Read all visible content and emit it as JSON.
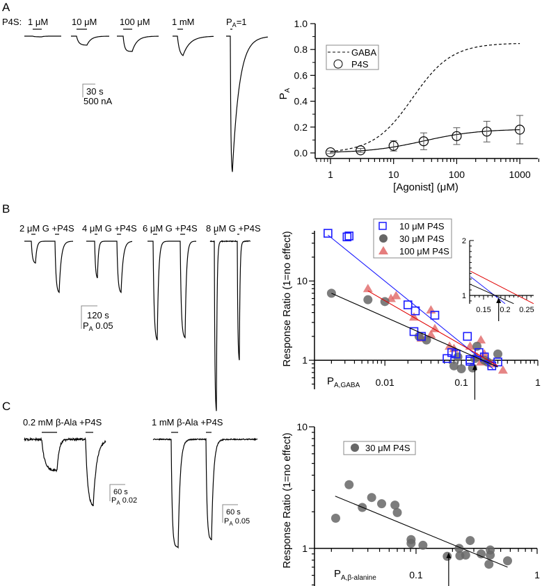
{
  "panels": {
    "a": "A",
    "b": "B",
    "c": "C"
  },
  "traces_a": {
    "prefix": "P4S:",
    "labels": [
      "1 μM",
      "10 μM",
      "100 μM",
      "1 mM"
    ],
    "pa_main": "P",
    "pa_sub": "A",
    "pa_rest": "=1",
    "scale_time": "30 s",
    "scale_amp": "500 nA"
  },
  "traces_b": {
    "labels": [
      "2 μM G +P4S",
      "4 μM G +P4S",
      "6 μM G +P4S",
      "8 μM G +P4S"
    ],
    "scale_time": "120 s",
    "scale_amp_main": "P",
    "scale_amp_sub": "A",
    "scale_amp_rest": " 0.05"
  },
  "traces_c": {
    "labels": [
      "0.2 mM β-Ala +P4S",
      "1 mM β-Ala +P4S"
    ],
    "scale1_time": "60 s",
    "scale1_amp_rest": " 0.02",
    "scale2_time": "60 s",
    "scale2_amp_rest": " 0.05",
    "amp_main": "P",
    "amp_sub": "A"
  },
  "chart_data": [
    {
      "type": "scatter",
      "panel": "A",
      "xlabel": "[Agonist] (μM)",
      "ylabel_main": "P",
      "ylabel_sub": "A",
      "xscale": "log",
      "xlim": [
        0.6,
        2000
      ],
      "ylim": [
        0,
        1.0
      ],
      "xticks": [
        "1",
        "10",
        "100",
        "1000"
      ],
      "yticks": [
        "0.0",
        "0.2",
        "0.4",
        "0.6",
        "0.8",
        "1.0"
      ],
      "legend_position": "top-left",
      "grid": false,
      "series": [
        {
          "name": "GABA",
          "style": "dashed-line",
          "fit": {
            "max": 0.85,
            "ec50": 20,
            "hill": 1.4
          }
        },
        {
          "name": "P4S",
          "style": "open-circle",
          "x": [
            1,
            3,
            10,
            30,
            100,
            300,
            1000
          ],
          "y": [
            0.005,
            0.02,
            0.055,
            0.09,
            0.13,
            0.165,
            0.18
          ],
          "err": [
            0.01,
            0.015,
            0.04,
            0.065,
            0.065,
            0.08,
            0.11
          ],
          "fit": {
            "max": 0.185,
            "ec50": 30,
            "hill": 1.0
          }
        }
      ]
    },
    {
      "type": "scatter",
      "panel": "B",
      "xlabel_main": "P",
      "xlabel_sub": "A,GABA",
      "ylabel": "Response Ratio (1=no effect)",
      "xscale": "log",
      "yscale": "log",
      "xlim": [
        0.0012,
        1
      ],
      "ylim": [
        0.43,
        43
      ],
      "xticks": [
        "0.01",
        "0.1",
        "1"
      ],
      "yticks": [
        "1",
        "10"
      ],
      "legend_position": "top-center",
      "grid": false,
      "arrow_x": 0.15,
      "series": [
        {
          "name": "10 μM P4S",
          "color": "#1a1aff",
          "marker": "open-square",
          "x": [
            0.0018,
            0.0032,
            0.0034,
            0.02,
            0.025,
            0.024,
            0.03,
            0.045,
            0.065,
            0.075,
            0.085,
            0.12,
            0.13,
            0.13,
            0.17,
            0.2,
            0.25,
            0.3
          ],
          "y": [
            40,
            36,
            37,
            5,
            4.2,
            2.3,
            2.0,
            3.7,
            1.05,
            1.25,
            1.2,
            2.0,
            0.97,
            1.02,
            1.25,
            1.1,
            0.85,
            0.95
          ],
          "fit": [
            [
              0.0018,
              38
            ],
            [
              0.26,
              0.78
            ]
          ]
        },
        {
          "name": "30 μM P4S",
          "color": "#666666",
          "marker": "filled-circle",
          "x": [
            0.002,
            0.006,
            0.01,
            0.028,
            0.035,
            0.08,
            0.09,
            0.1,
            0.14,
            0.15,
            0.16,
            0.2,
            0.3,
            0.22
          ],
          "y": [
            7,
            5.8,
            5.5,
            2,
            1.8,
            0.85,
            1.1,
            0.78,
            0.8,
            1.05,
            1.5,
            1.0,
            1.2,
            0.95
          ],
          "fit": [
            [
              0.002,
              7
            ],
            [
              0.3,
              0.82
            ]
          ]
        },
        {
          "name": "100 μM P4S",
          "color": "#e06666",
          "marker": "filled-triangle",
          "x": [
            0.006,
            0.012,
            0.014,
            0.024,
            0.04,
            0.04,
            0.045,
            0.03,
            0.07,
            0.08,
            0.13,
            0.16,
            0.18,
            0.2,
            0.18,
            0.35,
            0.25
          ],
          "y": [
            8,
            6,
            6.5,
            3.5,
            4.3,
            2.1,
            2.5,
            1.9,
            1.5,
            1.4,
            1.5,
            1.1,
            1.8,
            1.2,
            0.95,
            0.75,
            0.9
          ],
          "fit": [
            [
              0.006,
              7.5
            ],
            [
              0.3,
              0.85
            ]
          ]
        }
      ],
      "inset": {
        "xscale": "linear",
        "yscale": "linear",
        "xlim": [
          0.12,
          0.27
        ],
        "ylim": [
          0.85,
          2
        ],
        "xticks": [
          "0.15",
          "0.2",
          "0.25"
        ],
        "yticks": [
          "1",
          "2"
        ],
        "arrow_x": 0.185,
        "lines": [
          {
            "color": "#e00000",
            "points": [
              [
                0.12,
                1.44
              ],
              [
                0.266,
                0.85
              ]
            ]
          },
          {
            "color": "#1a1aff",
            "points": [
              [
                0.12,
                1.34
              ],
              [
                0.2,
                0.85
              ]
            ]
          },
          {
            "color": "#000000",
            "points": [
              [
                0.12,
                1.2
              ],
              [
                0.22,
                0.85
              ]
            ]
          }
        ]
      }
    },
    {
      "type": "scatter",
      "panel": "C",
      "xlabel_main": "P",
      "xlabel_sub": "A,β-alanine",
      "ylabel": "Response Ratio (1=no effect)",
      "xscale": "log",
      "yscale": "log",
      "xlim": [
        0.0145,
        1
      ],
      "ylim": [
        0.49,
        10
      ],
      "xticks": [
        "0.1",
        "1"
      ],
      "yticks": [
        "1",
        "10"
      ],
      "legend_position": "top-left",
      "grid": false,
      "arrow_x": 0.186,
      "series": [
        {
          "name": "30 μM P4S",
          "color": "#666666",
          "marker": "filled-circle",
          "x": [
            0.0217,
            0.028,
            0.036,
            0.043,
            0.052,
            0.067,
            0.07,
            0.091,
            0.091,
            0.114,
            0.181,
            0.227,
            0.23,
            0.257,
            0.28,
            0.345,
            0.4,
            0.41,
            0.41,
            0.57
          ],
          "y": [
            1.77,
            3.34,
            2.17,
            2.62,
            2.33,
            2.27,
            1.97,
            1.18,
            1.1,
            1.06,
            0.86,
            1.0,
            0.87,
            0.88,
            1.16,
            0.9,
            0.74,
            0.88,
            0.97,
            0.79
          ],
          "fit": [
            [
              0.0215,
              2.69
            ],
            [
              0.57,
              0.7
            ]
          ]
        }
      ]
    }
  ]
}
